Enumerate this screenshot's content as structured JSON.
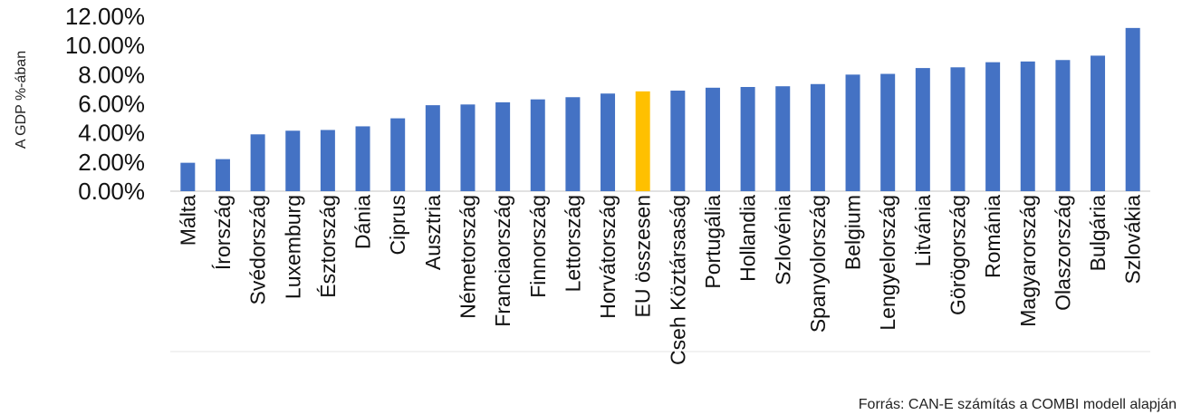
{
  "chart_data": {
    "type": "bar",
    "ylabel": "A GDP %-ában",
    "source": "Forrás: CAN-E számítás a COMBI modell alapján",
    "y_ticks": [
      "0.00%",
      "2.00%",
      "4.00%",
      "6.00%",
      "8.00%",
      "10.00%",
      "12.00%"
    ],
    "ylim": [
      0,
      12
    ],
    "grid": false,
    "colors": {
      "default": "#4472C4",
      "highlight": "#FFC000",
      "axis": "#d9d9d9"
    },
    "highlight_category": "EU összesen",
    "categories": [
      "Málta",
      "Írország",
      "Svédország",
      "Luxemburg",
      "Észtország",
      "Dánia",
      "Ciprus",
      "Ausztria",
      "Németország",
      "Franciaország",
      "Finnország",
      "Lettország",
      "Horvátország",
      "EU összesen",
      "Cseh Köztársaság",
      "Portugália",
      "Hollandia",
      "Szlovénia",
      "Spanyolország",
      "Belgium",
      "Lengyelország",
      "Litvánia",
      "Görögország",
      "Románia",
      "Magyarország",
      "Olaszország",
      "Bulgária",
      "Szlovákia"
    ],
    "values": [
      1.95,
      2.2,
      3.9,
      4.15,
      4.2,
      4.45,
      5.0,
      5.9,
      5.95,
      6.1,
      6.3,
      6.45,
      6.7,
      6.85,
      6.9,
      7.1,
      7.15,
      7.2,
      7.35,
      8.0,
      8.05,
      8.45,
      8.5,
      8.85,
      8.9,
      9.0,
      9.3,
      11.2
    ]
  }
}
